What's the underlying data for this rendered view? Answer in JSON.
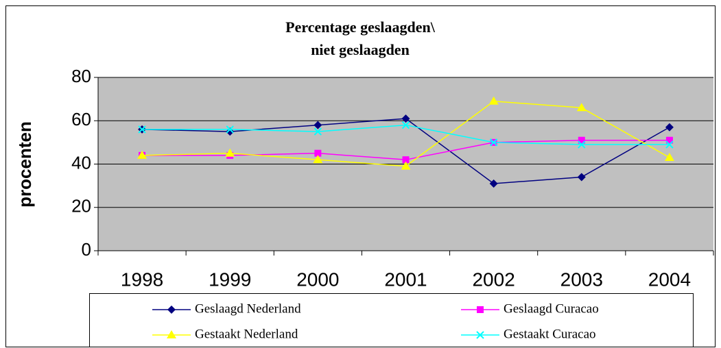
{
  "chart_data": {
    "type": "line",
    "title": [
      "Percentage geslaagden\\",
      "niet geslaagden"
    ],
    "y_label": "procenten",
    "categories": [
      "1998",
      "1999",
      "2000",
      "2001",
      "2002",
      "2003",
      "2004"
    ],
    "series": [
      {
        "name": "Geslaagd Nederland",
        "color": "#000080",
        "marker": "diamond",
        "values": [
          56,
          55,
          58,
          61,
          31,
          34,
          57
        ]
      },
      {
        "name": "Geslaagd Curacao",
        "color": "#ff00ff",
        "marker": "square",
        "values": [
          44,
          44,
          45,
          42,
          50,
          51,
          51
        ]
      },
      {
        "name": "Gestaakt Nederland",
        "color": "#ffff00",
        "marker": "triangle",
        "values": [
          44,
          45,
          42,
          39,
          69,
          66,
          43
        ]
      },
      {
        "name": "Gestaakt Curacao",
        "color": "#00ffff",
        "marker": "x",
        "values": [
          56,
          56,
          55,
          58,
          50,
          49,
          49
        ]
      }
    ],
    "ylim": [
      0,
      80
    ],
    "yticks": [
      0,
      20,
      40,
      60,
      80
    ],
    "grid": true,
    "plot_background": "#c0c0c0"
  }
}
